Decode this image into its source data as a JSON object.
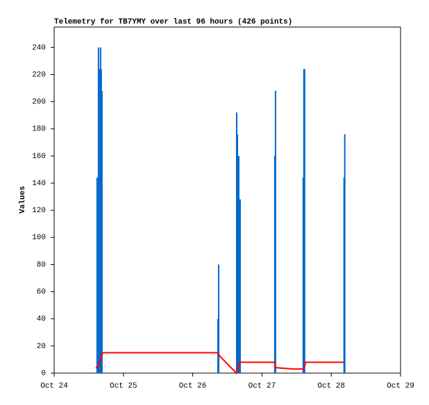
{
  "chart_data": {
    "type": "line",
    "title": "Telemetry for TB7YMY over last 96 hours (426 points)",
    "y_label": "Values",
    "xlim": [
      24,
      29
    ],
    "xticks": [
      {
        "value": 24,
        "label": "Oct 24"
      },
      {
        "value": 25,
        "label": "Oct 25"
      },
      {
        "value": 26,
        "label": "Oct 26"
      },
      {
        "value": 27,
        "label": "Oct 27"
      },
      {
        "value": 28,
        "label": "Oct 28"
      },
      {
        "value": 29,
        "label": "Oct 29"
      }
    ],
    "ylim": [
      0,
      255
    ],
    "yticks": [
      0,
      20,
      40,
      60,
      80,
      100,
      120,
      140,
      160,
      180,
      200,
      220,
      240
    ],
    "grid": false,
    "series": [
      {
        "color": "#0066cc",
        "style": "impulse",
        "x": [
          24.62,
          24.64,
          24.65,
          24.67,
          24.68,
          24.69,
          26.365,
          26.375,
          26.635,
          26.645,
          26.665,
          26.685,
          27.185,
          27.195,
          27.595,
          27.605,
          27.615,
          28.185,
          28.195
        ],
        "values": [
          144,
          240,
          224,
          240,
          224,
          208,
          40,
          80,
          192,
          176,
          160,
          128,
          160,
          208,
          144,
          224,
          224,
          144,
          176
        ]
      },
      {
        "color": "#ff0000",
        "style": "line",
        "x": [
          24.6,
          24.63,
          24.7,
          26.36,
          26.4,
          26.63,
          26.68,
          27.18,
          27.2,
          27.45,
          27.6,
          27.63,
          28.19
        ],
        "values": [
          4,
          4,
          15,
          15,
          12,
          0,
          8,
          8,
          4,
          3,
          3,
          8,
          8
        ]
      }
    ]
  }
}
